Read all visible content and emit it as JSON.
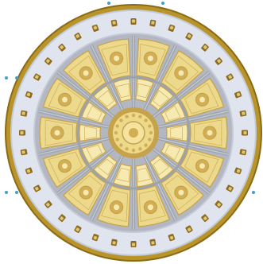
{
  "image": {
    "subject": "ornate-dome-ceiling",
    "colors": {
      "background": "#ffffff",
      "outer_gold": "#b8942a",
      "outer_gold_dark": "#8a6a14",
      "outer_ring": "#dfe4ee",
      "outer_ring_shadow": "#c3cad8",
      "coffer": "#8a6a1e",
      "coffer_light": "#e2c676",
      "inner_bg": "#b3b7c1",
      "inner_panel": "#ecd98b",
      "inner_panel_light": "#f6eab0",
      "inner_panel_dark": "#c6a24b",
      "rib": "#9da3ad",
      "rosette": "#d2ae55",
      "oculus": "#f3e39c",
      "marker": "#3d9fcd"
    },
    "outer_coffer_count": 36,
    "inner_panel_count": 14
  }
}
